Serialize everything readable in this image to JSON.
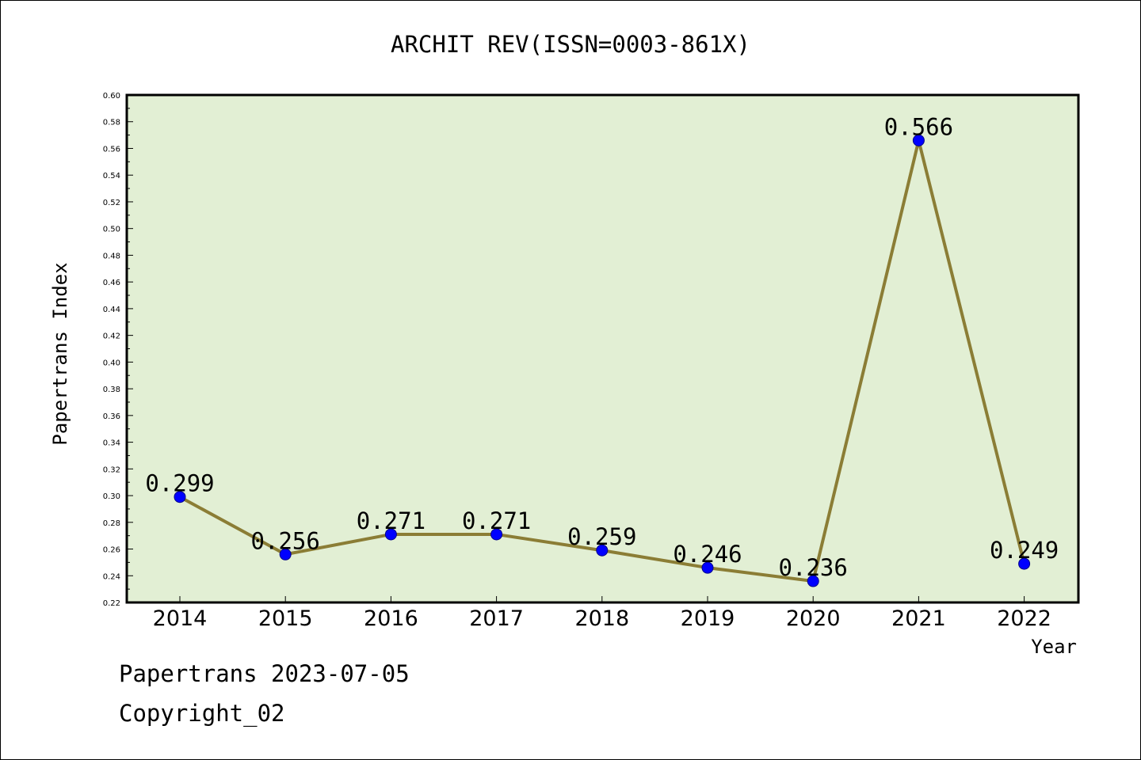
{
  "chart_data": {
    "type": "line",
    "title": "ARCHIT REV(ISSN=0003-861X)",
    "xlabel": "Year",
    "ylabel": "Papertrans Index",
    "categories": [
      "2014",
      "2015",
      "2016",
      "2017",
      "2018",
      "2019",
      "2020",
      "2021",
      "2022"
    ],
    "values": [
      0.299,
      0.256,
      0.271,
      0.271,
      0.259,
      0.246,
      0.236,
      0.566,
      0.249
    ],
    "data_labels": [
      "0.299",
      "0.256",
      "0.271",
      "0.271",
      "0.259",
      "0.246",
      "0.236",
      "0.566",
      "0.249"
    ],
    "ylim": [
      0.22,
      0.6
    ],
    "yticks": [
      "0.22",
      "0.24",
      "0.26",
      "0.28",
      "0.30",
      "0.32",
      "0.34",
      "0.36",
      "0.38",
      "0.40",
      "0.42",
      "0.44",
      "0.46",
      "0.48",
      "0.50",
      "0.52",
      "0.54",
      "0.56",
      "0.58",
      "0.60"
    ],
    "grid": false,
    "colors": {
      "plot_background": "#e2efd4",
      "line": "#8b7d35",
      "marker": "#0000ff"
    }
  },
  "footer": {
    "line1": "Papertrans 2023-07-05",
    "line2": "Copyright_02"
  }
}
